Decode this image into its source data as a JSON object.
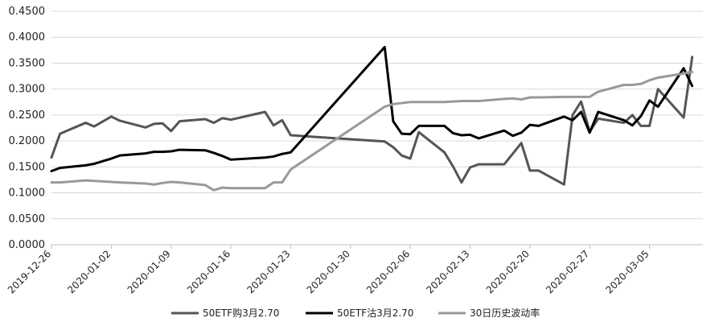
{
  "chart_data": {
    "type": "line",
    "title": "",
    "xlabel": "",
    "ylabel": "",
    "ylim": [
      0,
      0.45
    ],
    "yticks": [
      "0.0000",
      "0.0500",
      "0.1000",
      "0.1500",
      "0.2000",
      "0.2500",
      "0.3000",
      "0.3500",
      "0.4000",
      "0.4500"
    ],
    "xticks": [
      "2019-12-26",
      "2020-01-02",
      "2020-01-09",
      "2020-01-16",
      "2020-01-23",
      "2020-01-30",
      "2020-02-06",
      "2020-02-13",
      "2020-02-20",
      "2020-02-27",
      "2020-03-05"
    ],
    "grid": "horizontal",
    "legend_position": "bottom",
    "series": [
      {
        "name": "50ETF购3月2.70",
        "color": "#555555",
        "points": [
          [
            "2019-12-26",
            0.168
          ],
          [
            "2019-12-27",
            0.214
          ],
          [
            "2019-12-30",
            0.235
          ],
          [
            "2019-12-31",
            0.228
          ],
          [
            "2020-01-02",
            0.247
          ],
          [
            "2020-01-03",
            0.239
          ],
          [
            "2020-01-06",
            0.226
          ],
          [
            "2020-01-07",
            0.233
          ],
          [
            "2020-01-08",
            0.234
          ],
          [
            "2020-01-09",
            0.219
          ],
          [
            "2020-01-10",
            0.238
          ],
          [
            "2020-01-13",
            0.242
          ],
          [
            "2020-01-14",
            0.235
          ],
          [
            "2020-01-15",
            0.244
          ],
          [
            "2020-01-16",
            0.241
          ],
          [
            "2020-01-20",
            0.256
          ],
          [
            "2020-01-21",
            0.23
          ],
          [
            "2020-01-22",
            0.24
          ],
          [
            "2020-01-23",
            0.211
          ],
          [
            "2020-02-03",
            0.199
          ],
          [
            "2020-02-04",
            0.188
          ],
          [
            "2020-02-05",
            0.172
          ],
          [
            "2020-02-06",
            0.166
          ],
          [
            "2020-02-07",
            0.217
          ],
          [
            "2020-02-10",
            0.178
          ],
          [
            "2020-02-11",
            0.151
          ],
          [
            "2020-02-12",
            0.12
          ],
          [
            "2020-02-13",
            0.149
          ],
          [
            "2020-02-14",
            0.155
          ],
          [
            "2020-02-17",
            0.155
          ],
          [
            "2020-02-19",
            0.196
          ],
          [
            "2020-02-20",
            0.143
          ],
          [
            "2020-02-21",
            0.143
          ],
          [
            "2020-02-24",
            0.116
          ],
          [
            "2020-02-25",
            0.25
          ],
          [
            "2020-02-26",
            0.276
          ],
          [
            "2020-02-27",
            0.218
          ],
          [
            "2020-02-28",
            0.243
          ],
          [
            "2020-03-02",
            0.235
          ],
          [
            "2020-03-03",
            0.25
          ],
          [
            "2020-03-04",
            0.229
          ],
          [
            "2020-03-05",
            0.229
          ],
          [
            "2020-03-06",
            0.3
          ],
          [
            "2020-03-09",
            0.245
          ],
          [
            "2020-03-10",
            0.362
          ]
        ]
      },
      {
        "name": "50ETF沽3月2.70",
        "color": "#000000",
        "points": [
          [
            "2019-12-26",
            0.142
          ],
          [
            "2019-12-27",
            0.148
          ],
          [
            "2019-12-30",
            0.153
          ],
          [
            "2019-12-31",
            0.156
          ],
          [
            "2020-01-02",
            0.166
          ],
          [
            "2020-01-03",
            0.172
          ],
          [
            "2020-01-06",
            0.176
          ],
          [
            "2020-01-07",
            0.179
          ],
          [
            "2020-01-08",
            0.179
          ],
          [
            "2020-01-09",
            0.18
          ],
          [
            "2020-01-10",
            0.183
          ],
          [
            "2020-01-13",
            0.182
          ],
          [
            "2020-01-14",
            0.177
          ],
          [
            "2020-01-15",
            0.171
          ],
          [
            "2020-01-16",
            0.164
          ],
          [
            "2020-01-20",
            0.168
          ],
          [
            "2020-01-21",
            0.17
          ],
          [
            "2020-01-22",
            0.175
          ],
          [
            "2020-01-23",
            0.178
          ],
          [
            "2020-02-03",
            0.381
          ],
          [
            "2020-02-04",
            0.238
          ],
          [
            "2020-02-05",
            0.214
          ],
          [
            "2020-02-06",
            0.213
          ],
          [
            "2020-02-07",
            0.229
          ],
          [
            "2020-02-10",
            0.229
          ],
          [
            "2020-02-11",
            0.215
          ],
          [
            "2020-02-12",
            0.211
          ],
          [
            "2020-02-13",
            0.212
          ],
          [
            "2020-02-14",
            0.205
          ],
          [
            "2020-02-17",
            0.22
          ],
          [
            "2020-02-18",
            0.21
          ],
          [
            "2020-02-19",
            0.216
          ],
          [
            "2020-02-20",
            0.231
          ],
          [
            "2020-02-21",
            0.229
          ],
          [
            "2020-02-24",
            0.247
          ],
          [
            "2020-02-25",
            0.24
          ],
          [
            "2020-02-26",
            0.256
          ],
          [
            "2020-02-27",
            0.216
          ],
          [
            "2020-02-28",
            0.256
          ],
          [
            "2020-03-02",
            0.24
          ],
          [
            "2020-03-03",
            0.23
          ],
          [
            "2020-03-04",
            0.248
          ],
          [
            "2020-03-05",
            0.278
          ],
          [
            "2020-03-06",
            0.266
          ],
          [
            "2020-03-09",
            0.34
          ],
          [
            "2020-03-10",
            0.306
          ]
        ]
      },
      {
        "name": "30日历史波动率",
        "color": "#999999",
        "points": [
          [
            "2019-12-26",
            0.12
          ],
          [
            "2019-12-27",
            0.12
          ],
          [
            "2019-12-30",
            0.124
          ],
          [
            "2019-12-31",
            0.123
          ],
          [
            "2020-01-02",
            0.121
          ],
          [
            "2020-01-03",
            0.12
          ],
          [
            "2020-01-06",
            0.118
          ],
          [
            "2020-01-07",
            0.116
          ],
          [
            "2020-01-08",
            0.119
          ],
          [
            "2020-01-09",
            0.121
          ],
          [
            "2020-01-10",
            0.12
          ],
          [
            "2020-01-13",
            0.115
          ],
          [
            "2020-01-14",
            0.105
          ],
          [
            "2020-01-15",
            0.11
          ],
          [
            "2020-01-16",
            0.109
          ],
          [
            "2020-01-20",
            0.109
          ],
          [
            "2020-01-21",
            0.12
          ],
          [
            "2020-01-22",
            0.12
          ],
          [
            "2020-01-23",
            0.145
          ],
          [
            "2020-02-03",
            0.266
          ],
          [
            "2020-02-04",
            0.271
          ],
          [
            "2020-02-05",
            0.273
          ],
          [
            "2020-02-06",
            0.275
          ],
          [
            "2020-02-07",
            0.275
          ],
          [
            "2020-02-10",
            0.275
          ],
          [
            "2020-02-11",
            0.276
          ],
          [
            "2020-02-12",
            0.277
          ],
          [
            "2020-02-13",
            0.277
          ],
          [
            "2020-02-14",
            0.277
          ],
          [
            "2020-02-17",
            0.281
          ],
          [
            "2020-02-18",
            0.282
          ],
          [
            "2020-02-19",
            0.28
          ],
          [
            "2020-02-20",
            0.284
          ],
          [
            "2020-02-21",
            0.284
          ],
          [
            "2020-02-24",
            0.285
          ],
          [
            "2020-02-25",
            0.285
          ],
          [
            "2020-02-26",
            0.285
          ],
          [
            "2020-02-27",
            0.285
          ],
          [
            "2020-02-28",
            0.295
          ],
          [
            "2020-03-02",
            0.308
          ],
          [
            "2020-03-03",
            0.308
          ],
          [
            "2020-03-04",
            0.31
          ],
          [
            "2020-03-05",
            0.317
          ],
          [
            "2020-03-06",
            0.322
          ],
          [
            "2020-03-09",
            0.33
          ],
          [
            "2020-03-10",
            0.333
          ]
        ]
      }
    ]
  }
}
